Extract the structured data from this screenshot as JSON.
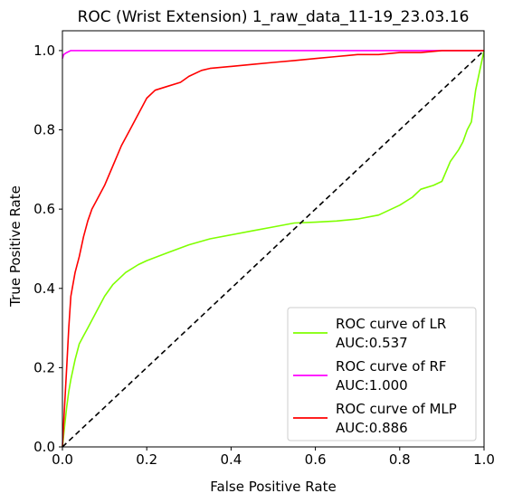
{
  "chart_data": {
    "type": "line",
    "title": "ROC (Wrist Extension) 1_raw_data_11-19_23.03.16",
    "xlabel": "False Positive Rate",
    "ylabel": "True Positive Rate",
    "xlim": [
      0.0,
      1.0
    ],
    "ylim": [
      0.0,
      1.05
    ],
    "xticks": [
      "0.0",
      "0.2",
      "0.4",
      "0.6",
      "0.8",
      "1.0"
    ],
    "yticks": [
      "0.0",
      "0.2",
      "0.4",
      "0.6",
      "0.8",
      "1.0"
    ],
    "grid": false,
    "legend_position": "lower-right",
    "series": [
      {
        "name": "ROC curve of LR",
        "auc_label": "AUC:0.537",
        "color": "#7fff00",
        "x": [
          0.0,
          0.005,
          0.01,
          0.015,
          0.02,
          0.03,
          0.04,
          0.05,
          0.06,
          0.08,
          0.1,
          0.12,
          0.15,
          0.18,
          0.2,
          0.25,
          0.3,
          0.35,
          0.4,
          0.45,
          0.5,
          0.55,
          0.6,
          0.65,
          0.7,
          0.75,
          0.8,
          0.83,
          0.85,
          0.88,
          0.9,
          0.92,
          0.94,
          0.95,
          0.96,
          0.97,
          0.98,
          0.99,
          1.0
        ],
        "y": [
          0.0,
          0.05,
          0.1,
          0.14,
          0.17,
          0.22,
          0.26,
          0.28,
          0.3,
          0.34,
          0.38,
          0.41,
          0.44,
          0.46,
          0.47,
          0.49,
          0.51,
          0.525,
          0.535,
          0.545,
          0.555,
          0.565,
          0.567,
          0.57,
          0.575,
          0.585,
          0.61,
          0.63,
          0.65,
          0.66,
          0.67,
          0.72,
          0.75,
          0.77,
          0.8,
          0.82,
          0.9,
          0.95,
          1.0
        ]
      },
      {
        "name": "ROC curve of RF",
        "auc_label": "AUC:1.000",
        "color": "#ff00ff",
        "x": [
          0.0,
          0.003,
          0.01,
          0.02,
          0.03,
          0.05,
          0.2,
          0.5,
          0.8,
          1.0
        ],
        "y": [
          0.98,
          0.99,
          0.995,
          1.0,
          1.0,
          1.0,
          1.0,
          1.0,
          1.0,
          1.0
        ]
      },
      {
        "name": "ROC curve of MLP",
        "auc_label": "AUC:0.886",
        "color": "#ff0000",
        "x": [
          0.0,
          0.005,
          0.01,
          0.015,
          0.02,
          0.03,
          0.04,
          0.05,
          0.06,
          0.07,
          0.08,
          0.1,
          0.12,
          0.14,
          0.16,
          0.18,
          0.2,
          0.22,
          0.25,
          0.28,
          0.3,
          0.33,
          0.35,
          0.4,
          0.45,
          0.5,
          0.55,
          0.6,
          0.65,
          0.7,
          0.75,
          0.8,
          0.85,
          0.9,
          0.95,
          1.0
        ],
        "y": [
          0.0,
          0.1,
          0.2,
          0.3,
          0.38,
          0.44,
          0.48,
          0.53,
          0.57,
          0.6,
          0.62,
          0.66,
          0.71,
          0.76,
          0.8,
          0.84,
          0.88,
          0.9,
          0.91,
          0.92,
          0.935,
          0.95,
          0.955,
          0.96,
          0.965,
          0.97,
          0.975,
          0.98,
          0.985,
          0.99,
          0.99,
          0.995,
          0.995,
          1.0,
          1.0,
          1.0
        ]
      },
      {
        "name": "",
        "color": "#000000",
        "style": "dashed",
        "x": [
          0.0,
          1.0
        ],
        "y": [
          0.0,
          1.0
        ]
      }
    ]
  }
}
